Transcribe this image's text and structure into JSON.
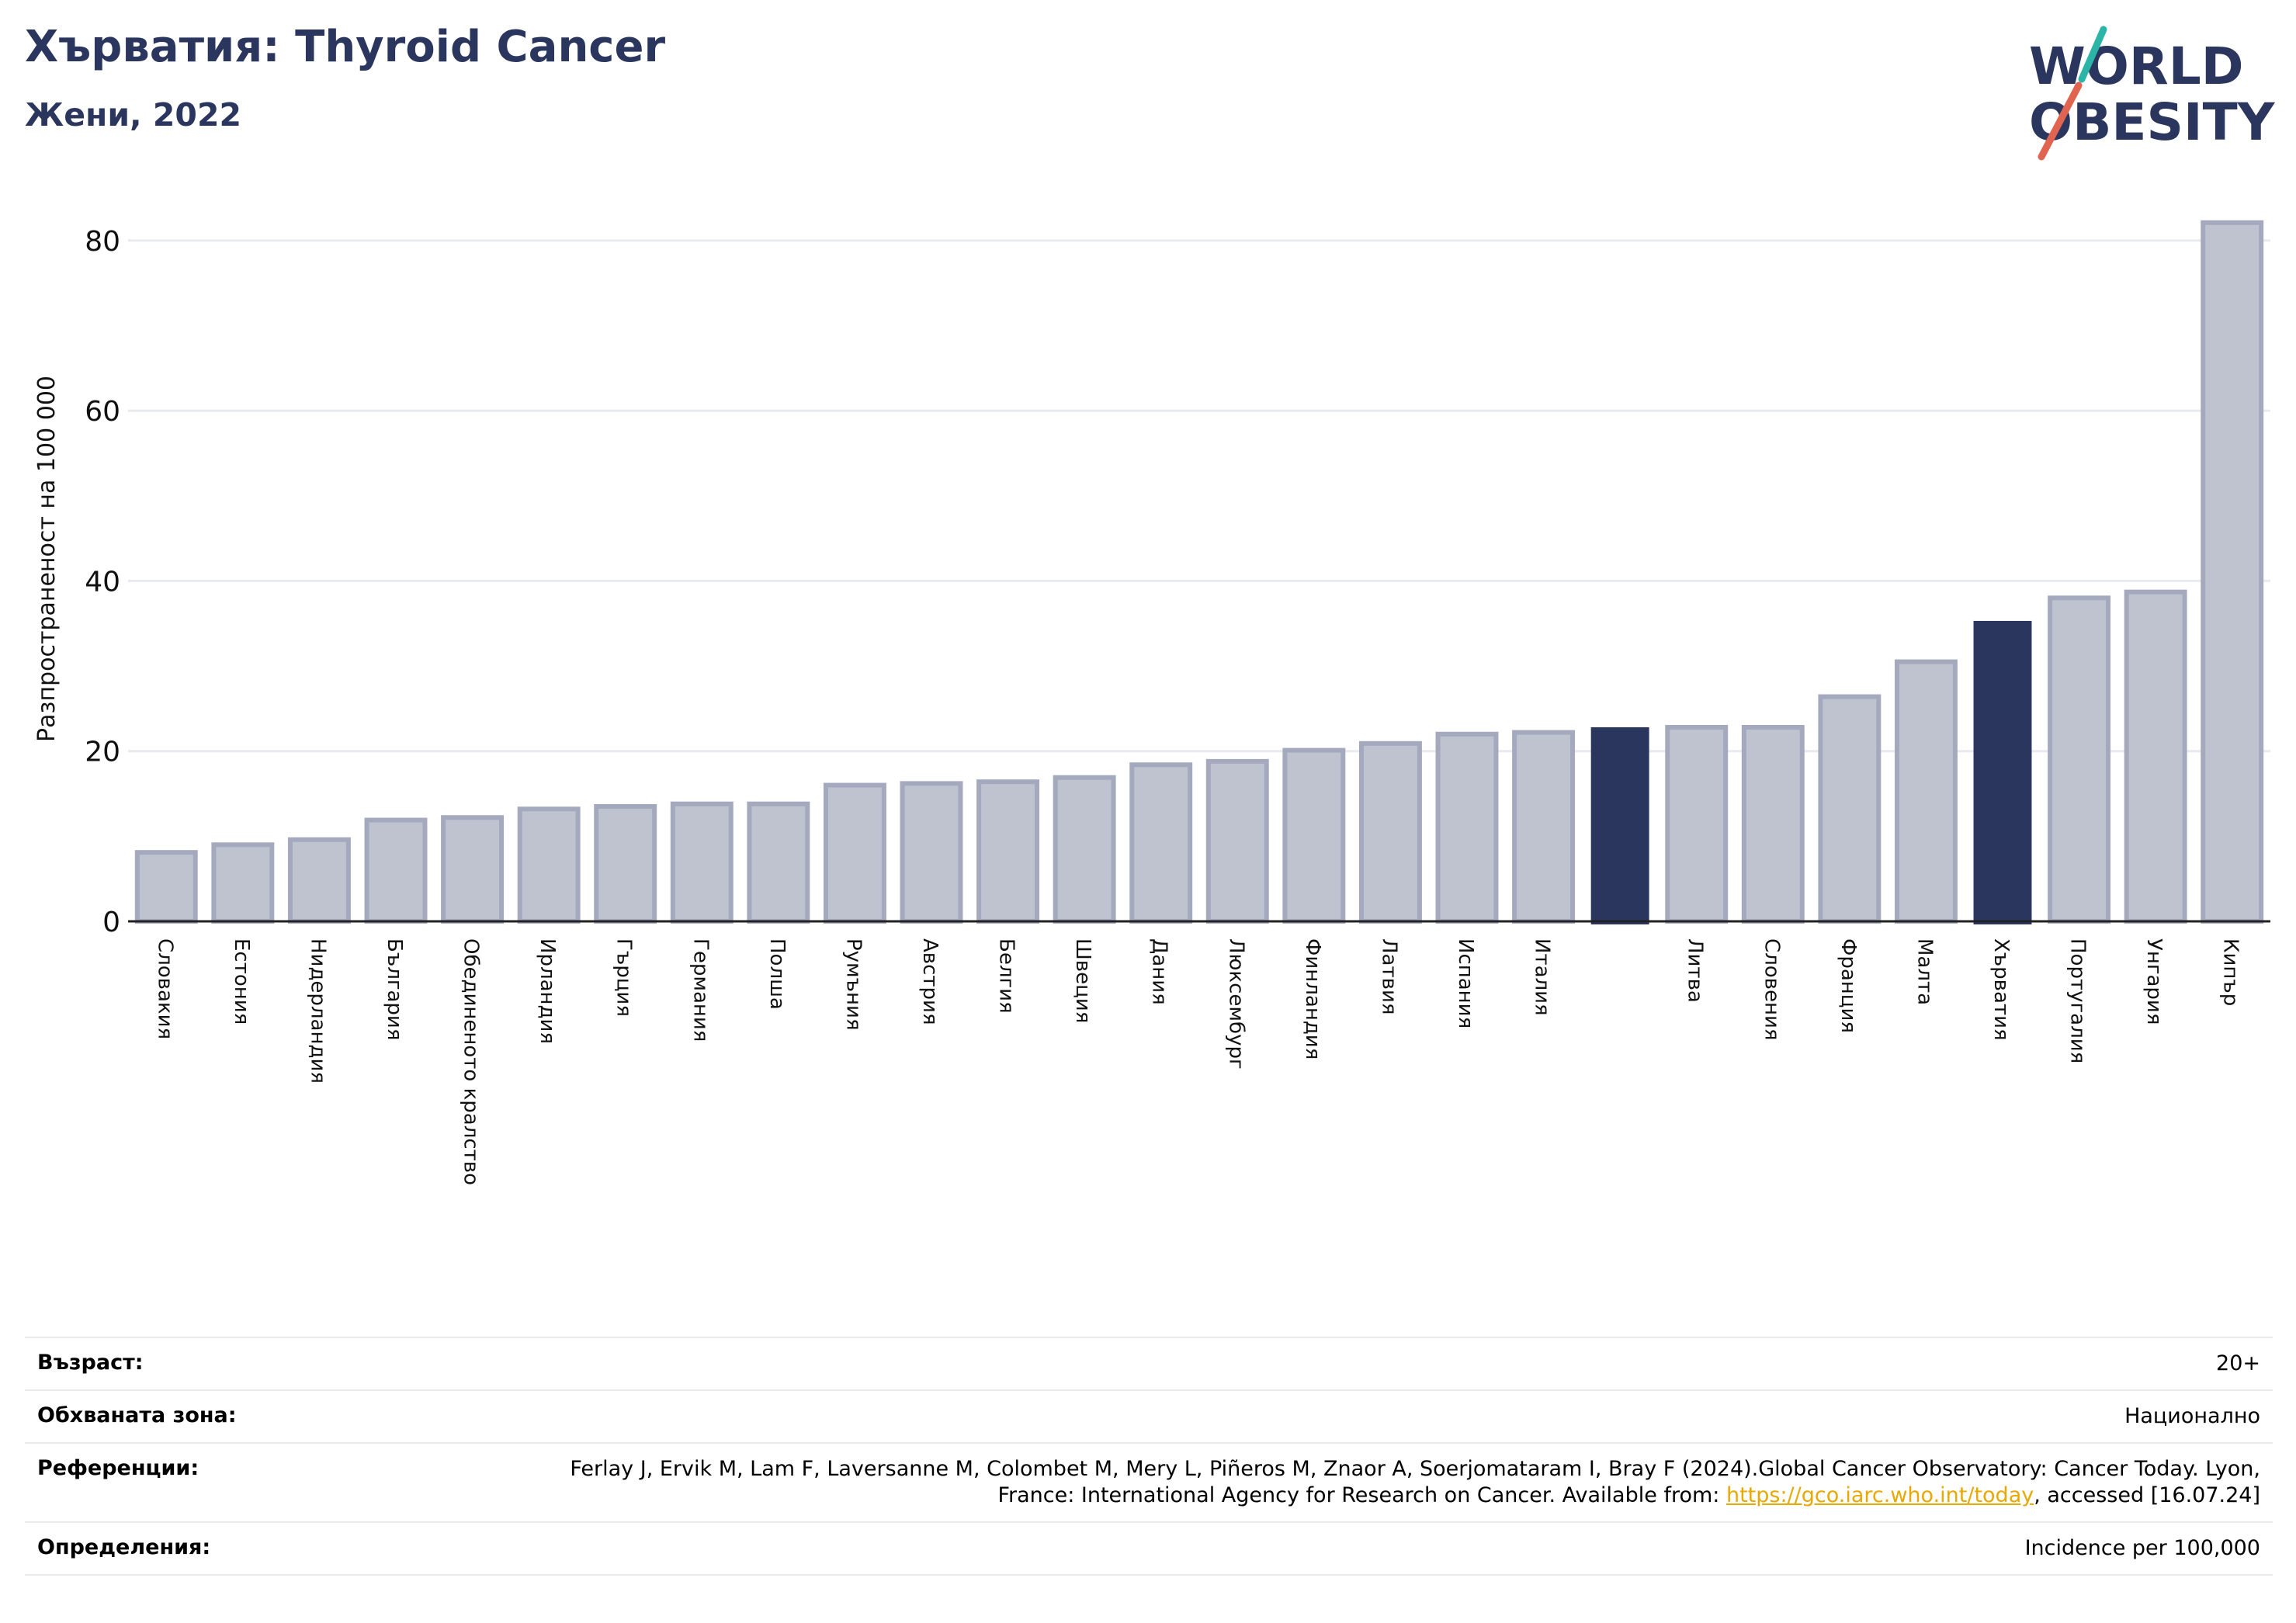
{
  "header": {
    "title": "Хърватия: Thyroid Cancer",
    "subtitle": "Жени, 2022"
  },
  "logo": {
    "line1": "WORLD",
    "line2": "OBESITY"
  },
  "colors": {
    "bar": "#bfc3d0",
    "bar_stroke": "#a4a9bd",
    "highlight": "#2b365e",
    "grid": "#e8eaf0",
    "title": "#2b365e",
    "link": "#e8a800"
  },
  "chart_data": {
    "type": "bar",
    "ylabel": "Разпространеност  на 100 000",
    "ylim": [
      0,
      85
    ],
    "yticks": [
      0,
      20,
      40,
      60,
      80
    ],
    "grid": true,
    "categories": [
      "Словакия",
      "Естония",
      "Нидерландия",
      "България",
      "Обединеното кралство",
      "Ирландия",
      "Гърция",
      "Германия",
      "Полша",
      "Румъния",
      "Австрия",
      "Белгия",
      "Швеция",
      "Дания",
      "Люксембург",
      "Финландия",
      "Латвия",
      "Испания",
      "Италия",
      "",
      "Литва",
      "Словения",
      "Франция",
      "Малта",
      "Хърватия",
      "Португалия",
      "Унгария",
      "Кипър"
    ],
    "values": [
      8.1,
      9.0,
      9.6,
      11.9,
      12.2,
      13.2,
      13.5,
      13.8,
      13.8,
      16.0,
      16.2,
      16.4,
      16.9,
      18.4,
      18.8,
      20.1,
      20.9,
      22.0,
      22.2,
      22.8,
      22.8,
      22.8,
      26.4,
      30.5,
      35.3,
      38.0,
      38.7,
      82.1
    ],
    "highlight_indices": [
      19,
      24
    ]
  },
  "info": [
    {
      "key": "Възраст:",
      "value": "20+"
    },
    {
      "key": "Обхваната зона:",
      "value": "Национално"
    },
    {
      "key": "Референции:",
      "value_before": "Ferlay J, Ervik M, Lam F, Laversanne M, Colombet M, Mery L, Piñeros M, Znaor A, Soerjomataram I, Bray F (2024).Global Cancer Observatory: Cancer Today. Lyon, France: International Agency for Research on Cancer. Available from: ",
      "link": "https://gco.iarc.who.int/today",
      "value_after": ", accessed [16.07.24]"
    },
    {
      "key": "Определения:",
      "value": "Incidence per 100,000"
    }
  ]
}
